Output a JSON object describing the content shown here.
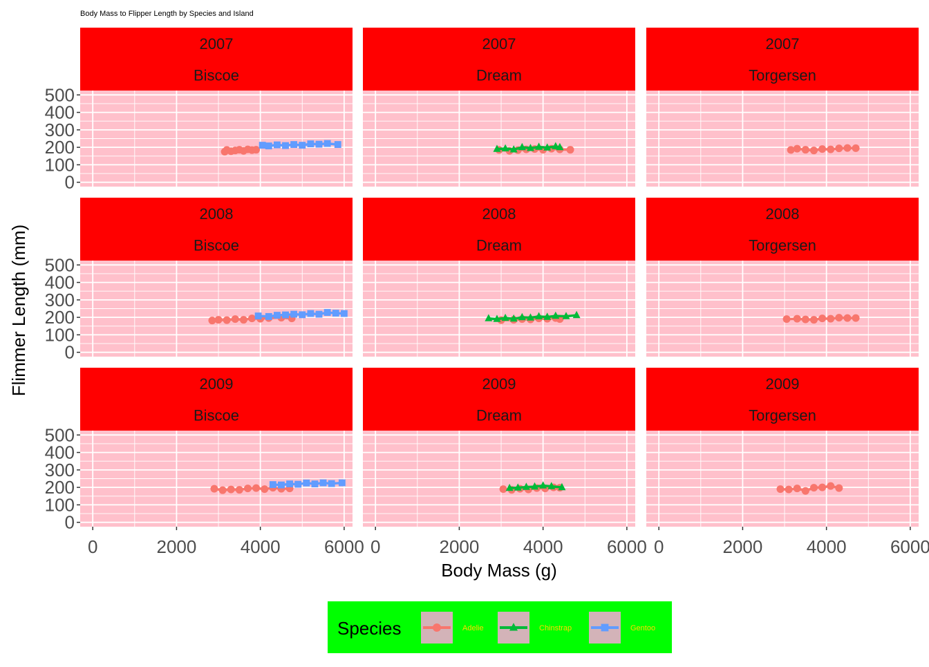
{
  "chart_data": {
    "type": "line",
    "title": "Body Mass to Flipper Length by Species and Island",
    "xlabel": "Body Mass (g)",
    "ylabel": "Flimmer Length (mm)",
    "xlim": [
      -300,
      6200
    ],
    "ylim": [
      -25,
      525
    ],
    "x_ticks": [
      0,
      2000,
      4000,
      6000
    ],
    "y_ticks": [
      0,
      100,
      200,
      300,
      400,
      500
    ],
    "grid": true,
    "legend": {
      "title": "Species",
      "position": "bottom",
      "entries": [
        {
          "name": "Adelie",
          "color": "#F8766D",
          "marker": "circle"
        },
        {
          "name": "Chinstrap",
          "color": "#00BA38",
          "marker": "triangle"
        },
        {
          "name": "Gentoo",
          "color": "#619CFF",
          "marker": "square"
        }
      ]
    },
    "colors": {
      "panel_background": "#FFC0CB",
      "strip_background": "#FF0000",
      "legend_background": "#00FF00",
      "legend_key_background": "#D3B3B8",
      "legend_text": "#FFD700"
    },
    "years": [
      "2007",
      "2008",
      "2009"
    ],
    "islands": [
      "Biscoe",
      "Dream",
      "Torgersen"
    ],
    "panels": [
      {
        "year": "2007",
        "island": "Biscoe",
        "series": [
          {
            "name": "Adelie",
            "x": [
              3150,
              3200,
              3300,
              3400,
              3500,
              3600,
              3700,
              3800,
              3900
            ],
            "y": [
              175,
              185,
              178,
              182,
              186,
              180,
              188,
              184,
              186
            ]
          },
          {
            "name": "Gentoo",
            "x": [
              4050,
              4200,
              4400,
              4600,
              4800,
              5000,
              5200,
              5400,
              5600,
              5850
            ],
            "y": [
              212,
              208,
              214,
              210,
              216,
              212,
              220,
              218,
              222,
              216
            ]
          }
        ]
      },
      {
        "year": "2007",
        "island": "Dream",
        "series": [
          {
            "name": "Adelie",
            "x": [
              2950,
              3200,
              3400,
              3600,
              3800,
              4000,
              4200,
              4400,
              4650
            ],
            "y": [
              185,
              180,
              184,
              188,
              190,
              186,
              192,
              188,
              186
            ]
          },
          {
            "name": "Chinstrap",
            "x": [
              2900,
              3100,
              3300,
              3500,
              3700,
              3900,
              4100,
              4300,
              4400
            ],
            "y": [
              190,
              193,
              187,
              200,
              195,
              202,
              198,
              205,
              200
            ]
          }
        ]
      },
      {
        "year": "2007",
        "island": "Torgersen",
        "series": [
          {
            "name": "Adelie",
            "x": [
              3150,
              3300,
              3500,
              3700,
              3900,
              4100,
              4300,
              4500,
              4700
            ],
            "y": [
              185,
              192,
              186,
              182,
              190,
              188,
              194,
              196,
              195
            ]
          }
        ]
      },
      {
        "year": "2008",
        "island": "Biscoe",
        "series": [
          {
            "name": "Adelie",
            "x": [
              2850,
              3000,
              3200,
              3400,
              3600,
              3800,
              4000,
              4200,
              4500,
              4750
            ],
            "y": [
              182,
              186,
              184,
              190,
              186,
              194,
              192,
              196,
              198,
              194
            ]
          },
          {
            "name": "Gentoo",
            "x": [
              3950,
              4200,
              4400,
              4600,
              4800,
              5000,
              5200,
              5400,
              5600,
              5800,
              6000
            ],
            "y": [
              208,
              205,
              212,
              214,
              218,
              215,
              222,
              218,
              228,
              224,
              222
            ]
          }
        ]
      },
      {
        "year": "2008",
        "island": "Dream",
        "series": [
          {
            "name": "Adelie",
            "x": [
              3000,
              3300,
              3500,
              3700,
              3900,
              4100,
              4300,
              4400
            ],
            "y": [
              184,
              186,
              190,
              188,
              194,
              192,
              196,
              190
            ]
          },
          {
            "name": "Chinstrap",
            "x": [
              2700,
              2900,
              3100,
              3300,
              3500,
              3700,
              3900,
              4100,
              4300,
              4550,
              4800
            ],
            "y": [
              194,
              190,
              196,
              192,
              200,
              198,
              205,
              202,
              208,
              206,
              212
            ]
          }
        ]
      },
      {
        "year": "2008",
        "island": "Torgersen",
        "series": [
          {
            "name": "Adelie",
            "x": [
              3050,
              3300,
              3500,
              3700,
              3900,
              4100,
              4300,
              4500,
              4700
            ],
            "y": [
              190,
              192,
              188,
              186,
              194,
              192,
              198,
              196,
              196
            ]
          }
        ]
      },
      {
        "year": "2009",
        "island": "Biscoe",
        "series": [
          {
            "name": "Adelie",
            "x": [
              2900,
              3100,
              3300,
              3500,
              3700,
              3900,
              4100,
              4300,
              4500,
              4700
            ],
            "y": [
              192,
              184,
              188,
              186,
              194,
              196,
              190,
              198,
              192,
              194
            ]
          },
          {
            "name": "Gentoo",
            "x": [
              4300,
              4500,
              4700,
              4900,
              5100,
              5300,
              5500,
              5700,
              5950
            ],
            "y": [
              216,
              214,
              220,
              218,
              225,
              220,
              226,
              222,
              226
            ]
          }
        ]
      },
      {
        "year": "2009",
        "island": "Dream",
        "series": [
          {
            "name": "Adelie",
            "x": [
              3050,
              3250,
              3450,
              3650,
              3850,
              4050,
              4250,
              4400
            ],
            "y": [
              190,
              186,
              192,
              188,
              196,
              194,
              200,
              198
            ]
          },
          {
            "name": "Chinstrap",
            "x": [
              3200,
              3400,
              3600,
              3800,
              4000,
              4200,
              4450
            ],
            "y": [
              196,
              198,
              202,
              204,
              210,
              206,
              200
            ]
          }
        ]
      },
      {
        "year": "2009",
        "island": "Torgersen",
        "series": [
          {
            "name": "Adelie",
            "x": [
              2900,
              3100,
              3300,
              3500,
              3700,
              3900,
              4100,
              4300
            ],
            "y": [
              190,
              188,
              194,
              180,
              198,
              200,
              208,
              196
            ]
          }
        ]
      }
    ]
  }
}
